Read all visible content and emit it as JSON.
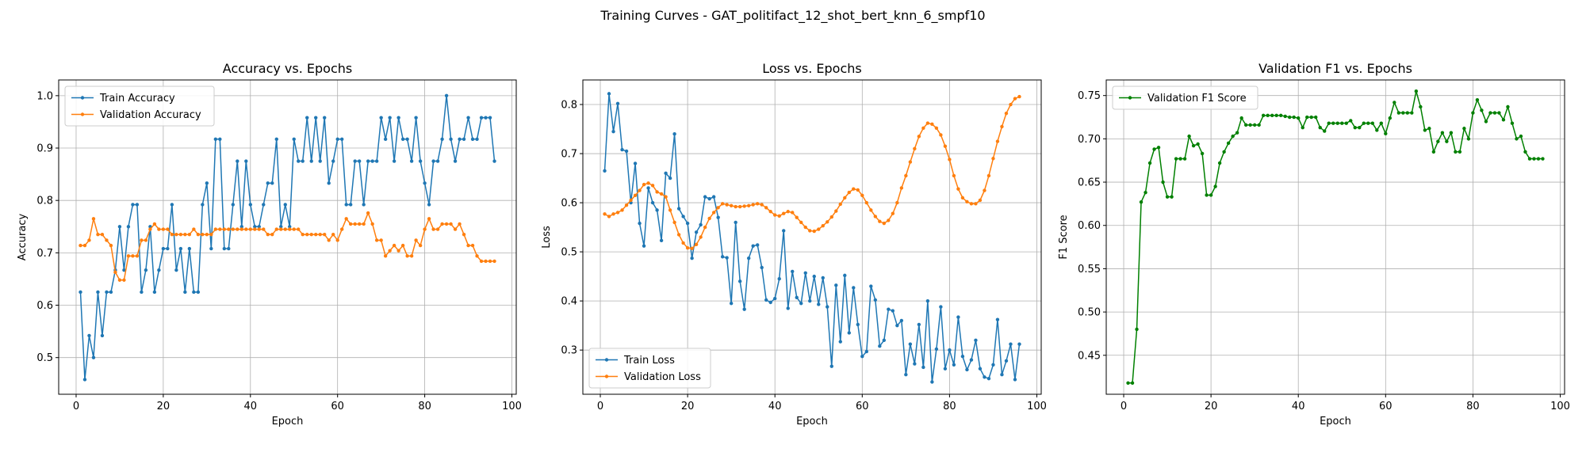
{
  "chart_data": {
    "suptitle": "Training Curves - GAT_politifact_12_shot_bert_knn_6_smpf10",
    "colors": {
      "blue": "#1f77b4",
      "orange": "#ff7f0e",
      "green": "#008000"
    },
    "panels": [
      {
        "type": "line",
        "title": "Accuracy vs. Epochs",
        "xlabel": "Epoch",
        "ylabel": "Accuracy",
        "xlim": [
          -4,
          101
        ],
        "ylim": [
          0.43,
          1.03
        ],
        "xticks": [
          0,
          20,
          40,
          60,
          80,
          100
        ],
        "yticks": [
          0.5,
          0.6,
          0.7,
          0.8,
          0.9,
          1.0
        ],
        "ytick_labels": [
          "0.5",
          "0.6",
          "0.7",
          "0.8",
          "0.9",
          "1.0"
        ],
        "legend": "top-left",
        "grid": true,
        "series": [
          {
            "name": "Train Accuracy",
            "color": "#1f77b4",
            "values": [
              0.625,
              0.458,
              0.542,
              0.5,
              0.625,
              0.542,
              0.625,
              0.625,
              0.667,
              0.75,
              0.667,
              0.75,
              0.792,
              0.792,
              0.625,
              0.667,
              0.75,
              0.625,
              0.667,
              0.708,
              0.708,
              0.792,
              0.667,
              0.708,
              0.625,
              0.708,
              0.625,
              0.625,
              0.792,
              0.833,
              0.708,
              0.917,
              0.917,
              0.708,
              0.708,
              0.792,
              0.875,
              0.75,
              0.875,
              0.792,
              0.75,
              0.75,
              0.792,
              0.833,
              0.833,
              0.917,
              0.75,
              0.792,
              0.75,
              0.917,
              0.875,
              0.875,
              0.958,
              0.875,
              0.958,
              0.875,
              0.958,
              0.833,
              0.875,
              0.917,
              0.917,
              0.792,
              0.792,
              0.875,
              0.875,
              0.792,
              0.875,
              0.875,
              0.875,
              0.958,
              0.917,
              0.958,
              0.875,
              0.958,
              0.917,
              0.917,
              0.875,
              0.958,
              0.875,
              0.833,
              0.792,
              0.875,
              0.875,
              0.917,
              1.0,
              0.917,
              0.875,
              0.917,
              0.917,
              0.958,
              0.917,
              0.917,
              0.958,
              0.958,
              0.958,
              0.875
            ]
          },
          {
            "name": "Validation Accuracy",
            "color": "#ff7f0e",
            "values": [
              0.714,
              0.714,
              0.724,
              0.765,
              0.735,
              0.735,
              0.724,
              0.714,
              0.663,
              0.648,
              0.648,
              0.694,
              0.694,
              0.694,
              0.724,
              0.724,
              0.745,
              0.755,
              0.745,
              0.745,
              0.745,
              0.735,
              0.735,
              0.735,
              0.735,
              0.735,
              0.745,
              0.735,
              0.735,
              0.735,
              0.735,
              0.745,
              0.745,
              0.745,
              0.745,
              0.745,
              0.745,
              0.745,
              0.745,
              0.745,
              0.745,
              0.745,
              0.745,
              0.735,
              0.735,
              0.745,
              0.745,
              0.745,
              0.745,
              0.745,
              0.745,
              0.735,
              0.735,
              0.735,
              0.735,
              0.735,
              0.735,
              0.724,
              0.735,
              0.724,
              0.745,
              0.765,
              0.755,
              0.755,
              0.755,
              0.755,
              0.776,
              0.755,
              0.724,
              0.724,
              0.694,
              0.704,
              0.714,
              0.704,
              0.714,
              0.694,
              0.694,
              0.724,
              0.714,
              0.745,
              0.765,
              0.745,
              0.745,
              0.755,
              0.755,
              0.755,
              0.745,
              0.755,
              0.735,
              0.714,
              0.714,
              0.694,
              0.684,
              0.684,
              0.684,
              0.684
            ]
          }
        ]
      },
      {
        "type": "line",
        "title": "Loss vs. Epochs",
        "xlabel": "Epoch",
        "ylabel": "Loss",
        "xlim": [
          -4,
          101
        ],
        "ylim": [
          0.21,
          0.85
        ],
        "xticks": [
          0,
          20,
          40,
          60,
          80,
          100
        ],
        "yticks": [
          0.3,
          0.4,
          0.5,
          0.6,
          0.7,
          0.8
        ],
        "ytick_labels": [
          "0.3",
          "0.4",
          "0.5",
          "0.6",
          "0.7",
          "0.8"
        ],
        "legend": "bottom-left",
        "grid": true,
        "series": [
          {
            "name": "Train Loss",
            "color": "#1f77b4",
            "values": [
              0.665,
              0.822,
              0.745,
              0.802,
              0.708,
              0.705,
              0.6,
              0.68,
              0.558,
              0.512,
              0.63,
              0.6,
              0.585,
              0.523,
              0.66,
              0.65,
              0.74,
              0.588,
              0.572,
              0.558,
              0.487,
              0.54,
              0.555,
              0.612,
              0.608,
              0.612,
              0.57,
              0.49,
              0.488,
              0.395,
              0.56,
              0.44,
              0.383,
              0.487,
              0.512,
              0.514,
              0.468,
              0.402,
              0.397,
              0.405,
              0.445,
              0.543,
              0.385,
              0.46,
              0.407,
              0.395,
              0.457,
              0.4,
              0.45,
              0.393,
              0.447,
              0.388,
              0.267,
              0.432,
              0.317,
              0.452,
              0.335,
              0.427,
              0.352,
              0.287,
              0.297,
              0.43,
              0.402,
              0.308,
              0.32,
              0.383,
              0.38,
              0.35,
              0.36,
              0.25,
              0.312,
              0.272,
              0.352,
              0.265,
              0.4,
              0.235,
              0.302,
              0.388,
              0.262,
              0.3,
              0.27,
              0.367,
              0.287,
              0.26,
              0.28,
              0.32,
              0.262,
              0.245,
              0.242,
              0.27,
              0.362,
              0.25,
              0.278,
              0.312,
              0.24,
              0.312
            ]
          },
          {
            "name": "Validation Loss",
            "color": "#ff7f0e",
            "values": [
              0.577,
              0.572,
              0.577,
              0.58,
              0.585,
              0.595,
              0.605,
              0.615,
              0.625,
              0.637,
              0.64,
              0.635,
              0.622,
              0.618,
              0.612,
              0.585,
              0.56,
              0.535,
              0.518,
              0.508,
              0.507,
              0.515,
              0.53,
              0.55,
              0.568,
              0.58,
              0.59,
              0.598,
              0.596,
              0.594,
              0.592,
              0.592,
              0.593,
              0.594,
              0.596,
              0.598,
              0.596,
              0.59,
              0.582,
              0.575,
              0.573,
              0.578,
              0.582,
              0.58,
              0.57,
              0.56,
              0.55,
              0.543,
              0.542,
              0.546,
              0.553,
              0.561,
              0.571,
              0.583,
              0.597,
              0.61,
              0.621,
              0.628,
              0.626,
              0.615,
              0.6,
              0.585,
              0.572,
              0.562,
              0.558,
              0.564,
              0.578,
              0.6,
              0.63,
              0.655,
              0.683,
              0.71,
              0.735,
              0.752,
              0.762,
              0.76,
              0.752,
              0.738,
              0.715,
              0.688,
              0.655,
              0.628,
              0.61,
              0.602,
              0.598,
              0.598,
              0.605,
              0.625,
              0.655,
              0.69,
              0.725,
              0.755,
              0.782,
              0.8,
              0.812,
              0.816
            ]
          }
        ]
      },
      {
        "type": "line",
        "title": "Validation F1 vs. Epochs",
        "xlabel": "Epoch",
        "ylabel": "F1 Score",
        "xlim": [
          -4,
          101
        ],
        "ylim": [
          0.405,
          0.768
        ],
        "xticks": [
          0,
          20,
          40,
          60,
          80,
          100
        ],
        "yticks": [
          0.45,
          0.5,
          0.55,
          0.6,
          0.65,
          0.7,
          0.75
        ],
        "ytick_labels": [
          "0.45",
          "0.50",
          "0.55",
          "0.60",
          "0.65",
          "0.70",
          "0.75"
        ],
        "legend": "top-left",
        "grid": true,
        "series": [
          {
            "name": "Validation F1 Score",
            "color": "#008000",
            "values": [
              0.418,
              0.418,
              0.48,
              0.627,
              0.638,
              0.672,
              0.688,
              0.69,
              0.65,
              0.633,
              0.633,
              0.677,
              0.677,
              0.677,
              0.703,
              0.692,
              0.694,
              0.683,
              0.635,
              0.635,
              0.645,
              0.672,
              0.685,
              0.695,
              0.703,
              0.707,
              0.724,
              0.716,
              0.716,
              0.716,
              0.716,
              0.727,
              0.727,
              0.727,
              0.727,
              0.727,
              0.726,
              0.725,
              0.725,
              0.724,
              0.713,
              0.725,
              0.725,
              0.725,
              0.713,
              0.709,
              0.718,
              0.718,
              0.718,
              0.718,
              0.718,
              0.721,
              0.713,
              0.713,
              0.718,
              0.718,
              0.718,
              0.71,
              0.718,
              0.706,
              0.724,
              0.742,
              0.73,
              0.73,
              0.73,
              0.73,
              0.755,
              0.737,
              0.71,
              0.712,
              0.685,
              0.697,
              0.707,
              0.697,
              0.707,
              0.685,
              0.685,
              0.712,
              0.7,
              0.73,
              0.745,
              0.733,
              0.72,
              0.73,
              0.73,
              0.73,
              0.722,
              0.737,
              0.718,
              0.7,
              0.703,
              0.685,
              0.677,
              0.677,
              0.677,
              0.677
            ]
          }
        ]
      }
    ]
  }
}
